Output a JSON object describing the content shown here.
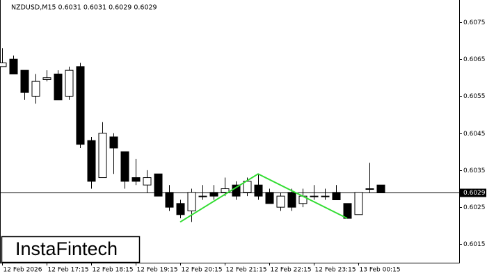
{
  "chart_data": {
    "type": "candlestick",
    "title": "NZDUSD,M15  0.6031 0.6031 0.6029 0.6029",
    "watermark": "InstaFintech",
    "categories": [
      "12 Feb 2026",
      null,
      null,
      null,
      "12 Feb 17:15",
      null,
      null,
      null,
      "12 Feb 18:15",
      null,
      null,
      null,
      "12 Feb 19:15",
      null,
      null,
      null,
      "12 Feb 20:15",
      null,
      null,
      null,
      "12 Feb 21:15",
      null,
      null,
      null,
      "12 Feb 22:15",
      null,
      null,
      null,
      "12 Feb 23:15",
      null,
      null,
      null,
      "13 Feb 00:15",
      null,
      null
    ],
    "open": [
      0.6063,
      0.6065,
      0.6062,
      0.6055,
      0.60595,
      0.6061,
      0.6055,
      0.6063,
      0.6043,
      0.6033,
      0.6044,
      0.604,
      0.6033,
      0.6031,
      0.6034,
      0.6029,
      0.6026,
      0.6024,
      0.6028,
      0.6029,
      0.6029,
      0.6031,
      0.6029,
      0.6031,
      0.6029,
      0.6025,
      0.6029,
      0.6026,
      0.6028,
      0.6028,
      0.6029,
      0.6026,
      0.6023,
      0.603,
      0.6031
    ],
    "high": [
      0.6068,
      0.6066,
      0.6062,
      0.6061,
      0.6062,
      0.6062,
      0.6063,
      0.6064,
      0.6044,
      0.6048,
      0.6045,
      0.604,
      0.6038,
      0.6035,
      0.6034,
      0.6031,
      0.6027,
      0.603,
      0.6031,
      0.6031,
      0.6033,
      0.6032,
      0.6033,
      0.6034,
      0.603,
      0.6029,
      0.603,
      0.603,
      0.6031,
      0.603,
      0.6031,
      0.6026,
      0.6029,
      0.6037,
      0.6031
    ],
    "low": [
      0.6063,
      0.6061,
      0.6054,
      0.6053,
      0.6059,
      0.6054,
      0.6054,
      0.6041,
      0.603,
      0.6033,
      0.6034,
      0.603,
      0.6031,
      0.6029,
      0.6028,
      0.6024,
      0.6022,
      0.6021,
      0.6027,
      0.6027,
      0.6028,
      0.6027,
      0.6028,
      0.6027,
      0.6026,
      0.6024,
      0.6024,
      0.6025,
      0.6027,
      0.6027,
      0.6027,
      0.6022,
      0.6023,
      0.6029,
      0.6029
    ],
    "close": [
      0.6064,
      0.6061,
      0.6056,
      0.6059,
      0.606,
      0.6054,
      0.6062,
      0.6042,
      0.6032,
      0.6045,
      0.6041,
      0.6032,
      0.6032,
      0.6033,
      0.6028,
      0.6025,
      0.6023,
      0.6029,
      0.6028,
      0.6028,
      0.603,
      0.6028,
      0.6032,
      0.6028,
      0.6026,
      0.6028,
      0.6025,
      0.6028,
      0.6028,
      0.6028,
      0.6027,
      0.6022,
      0.6029,
      0.603,
      0.6029
    ],
    "pattern": {
      "color": "#33dd33",
      "x": [
        16,
        23,
        31
      ],
      "values": [
        0.6021,
        0.6034,
        0.6022
      ]
    },
    "last_price": 0.6029,
    "ylim": [
      0.601,
      0.6081
    ],
    "yticks": [
      0.6015,
      0.6025,
      0.6035,
      0.6045,
      0.6055,
      0.6065,
      0.6075
    ]
  }
}
